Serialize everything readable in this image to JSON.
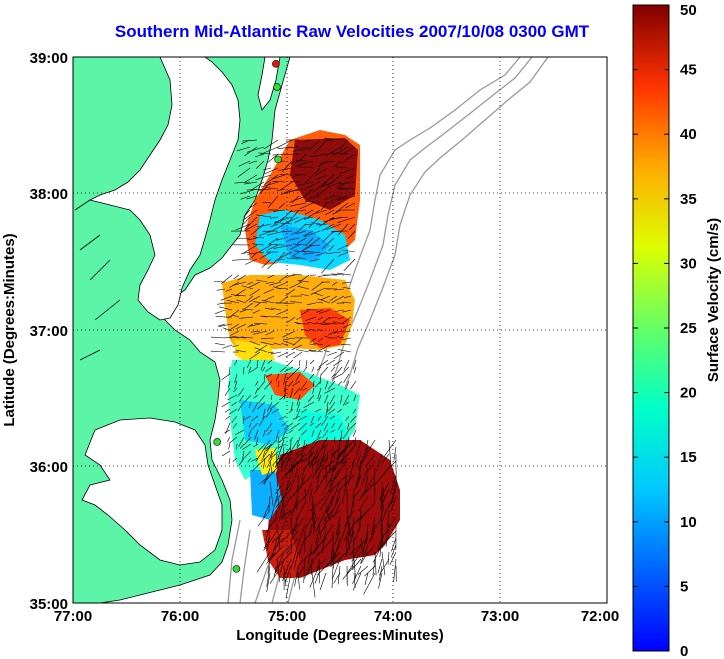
{
  "title": "Southern Mid-Atlantic Raw Velocities 2007/10/08 0300 GMT",
  "axes": {
    "xlabel": "Longitude (Degrees:Minutes)",
    "ylabel": "Latitude (Degrees:Minutes)",
    "x_ticks": [
      "77:00",
      "76:00",
      "75:00",
      "74:00",
      "73:00",
      "72:00"
    ],
    "y_ticks": [
      "35:00",
      "36:00",
      "37:00",
      "38:00",
      "39:00"
    ],
    "xlim": [
      -77,
      -72
    ],
    "ylim": [
      35,
      39
    ],
    "grid": true
  },
  "colorbar": {
    "label": "Surface Velocity (cm/s)",
    "ticks": [
      "0",
      "5",
      "10",
      "15",
      "20",
      "25",
      "30",
      "35",
      "40",
      "45",
      "50"
    ],
    "range": [
      0,
      50
    ],
    "colormap": "jet"
  },
  "colors": {
    "land": "#5cf5a8",
    "coastline": "#000000",
    "bathymetry": "#9a9a9a",
    "title": "#0000ff",
    "station_green": "#33dd33",
    "station_red": "#ee1111"
  },
  "stations": [
    {
      "lon": -75.1,
      "lat": 38.95,
      "color": "red"
    },
    {
      "lon": -75.09,
      "lat": 38.78,
      "color": "green"
    },
    {
      "lon": -75.08,
      "lat": 38.25,
      "color": "green"
    },
    {
      "lon": -75.65,
      "lat": 36.18,
      "color": "green"
    },
    {
      "lon": -75.47,
      "lat": 35.25,
      "color": "green"
    }
  ]
}
